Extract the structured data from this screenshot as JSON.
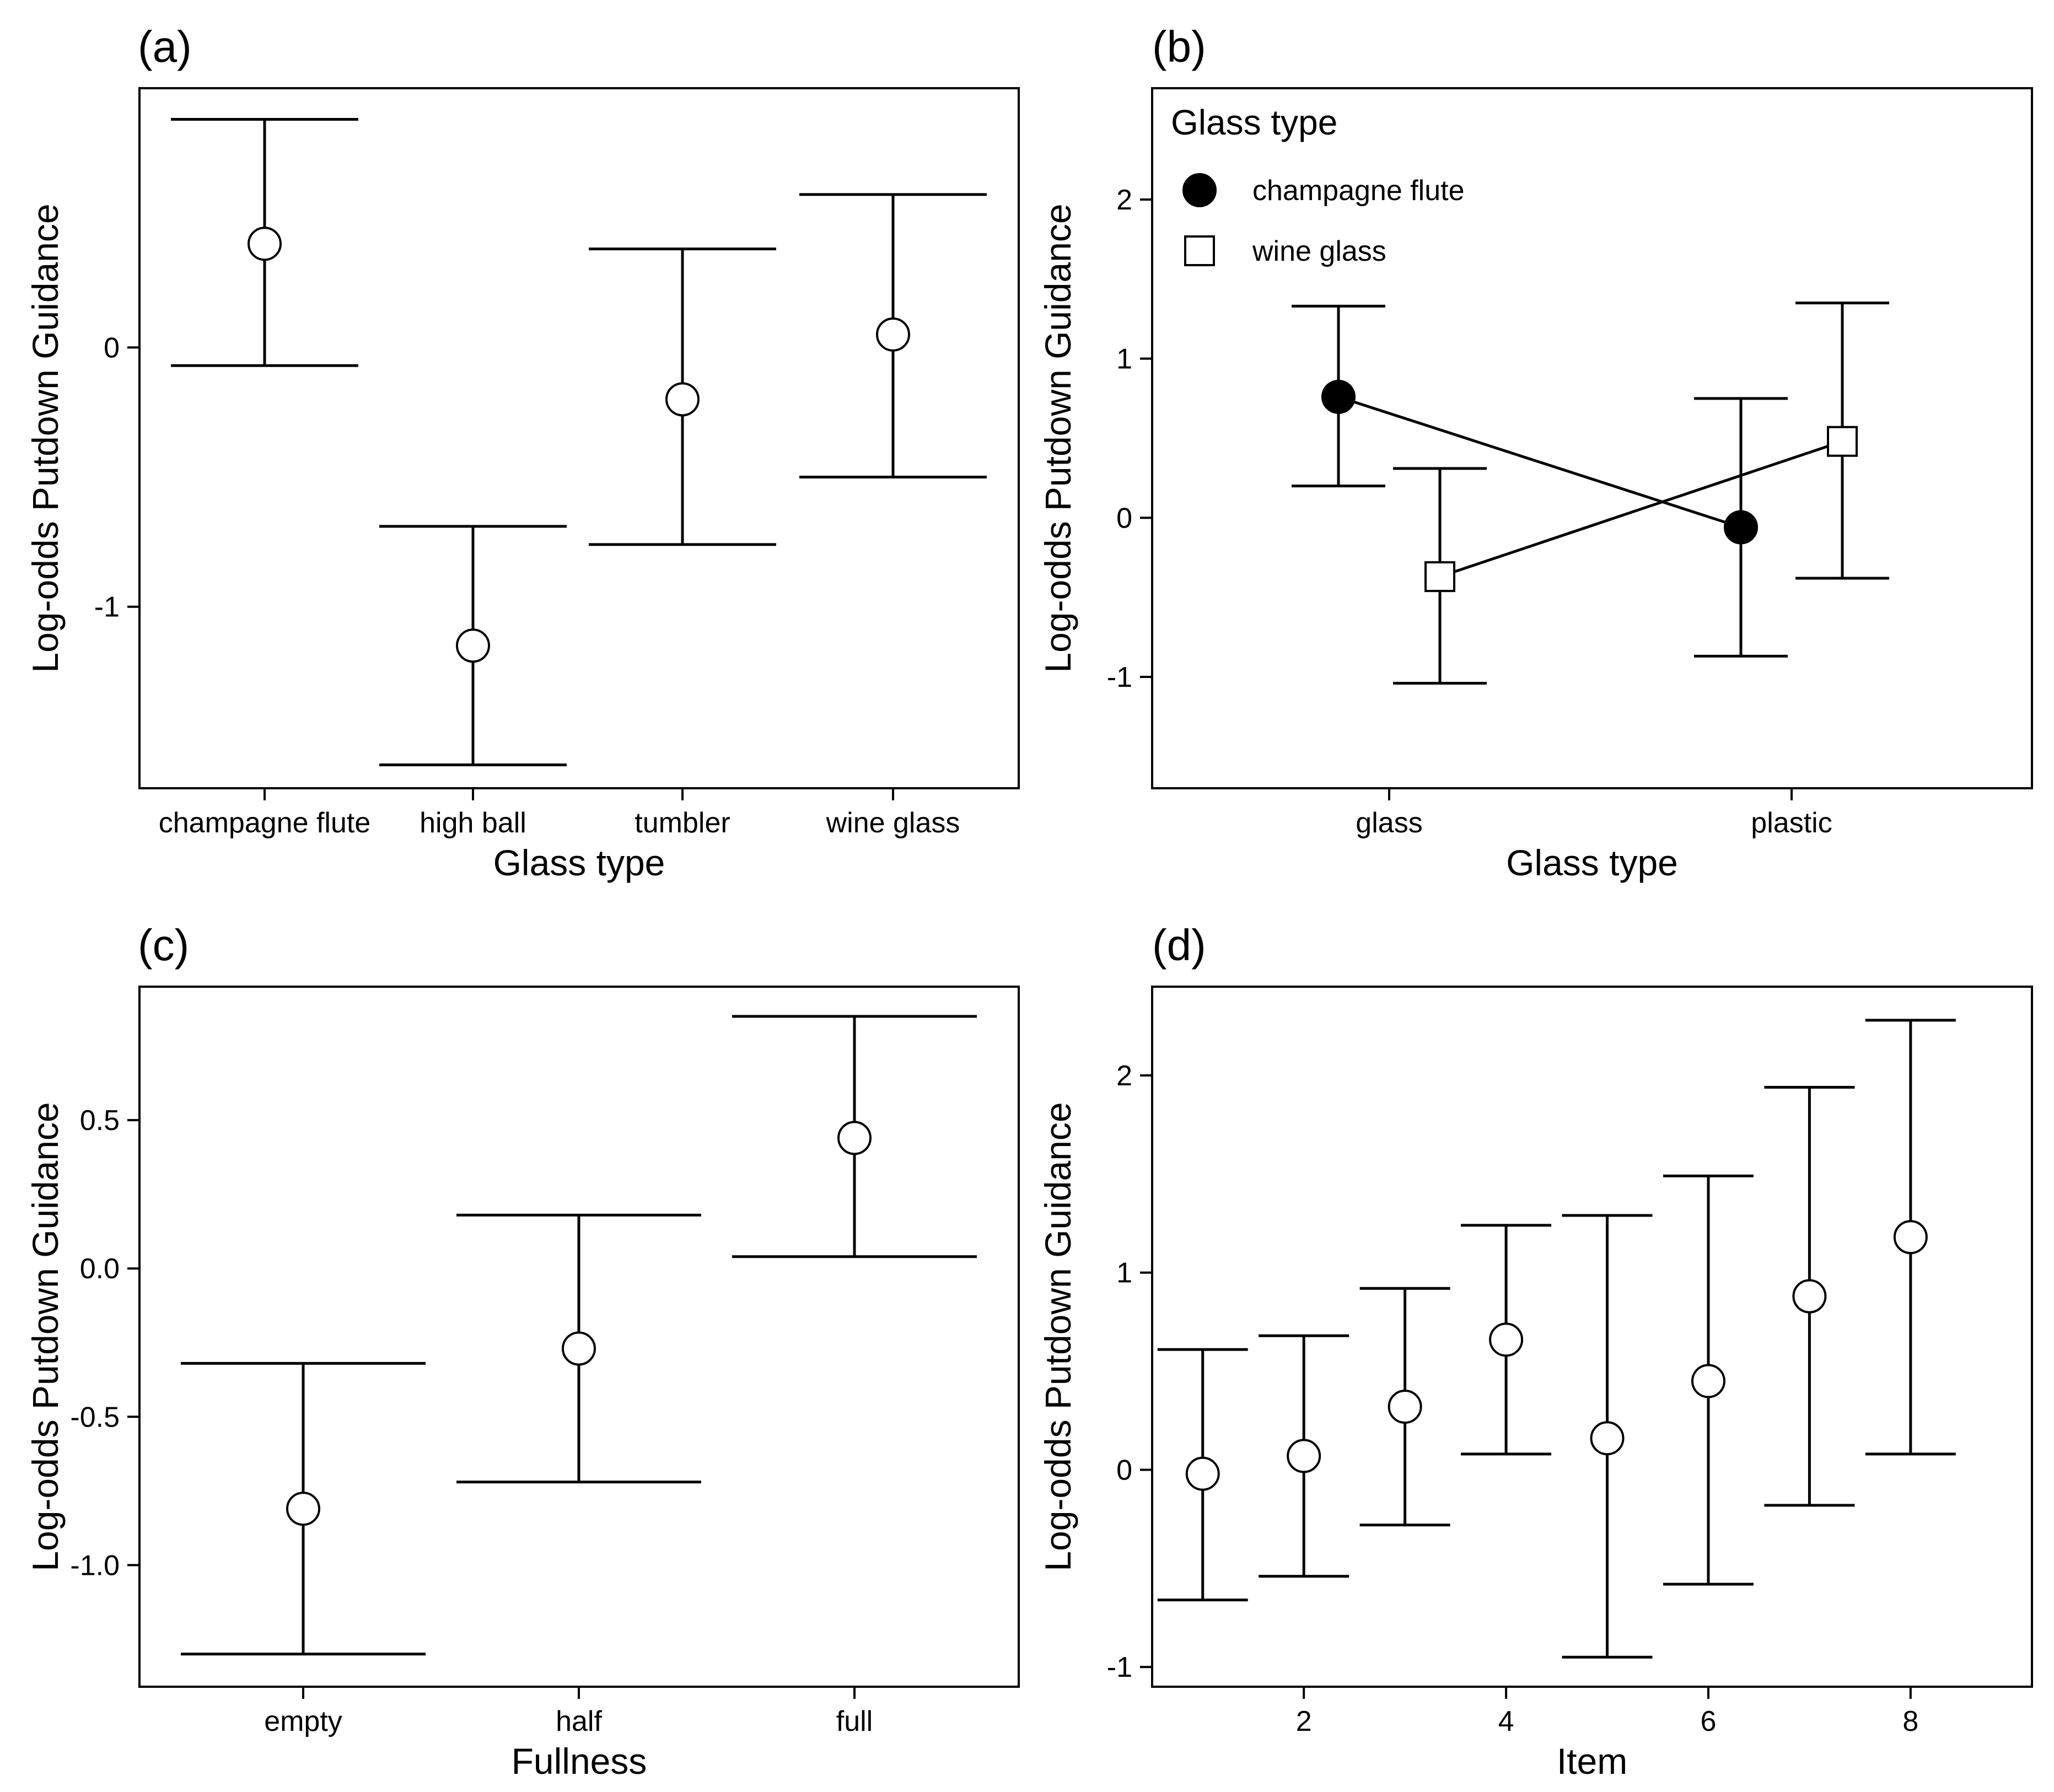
{
  "figure": {
    "colors": {
      "ink": "#000000",
      "open_marker_fill": "#ffffff",
      "filled_marker": "#000000",
      "background": "#ffffff"
    }
  },
  "chart_data": [
    {
      "id": "a",
      "panel_label": "(a)",
      "type": "scatter",
      "error_bars": true,
      "marker": "open-circle",
      "categories": [
        "champagne flute",
        "high ball",
        "tumbler",
        "wine glass"
      ],
      "values": [
        0.4,
        -1.15,
        -0.2,
        0.05
      ],
      "lower": [
        -0.07,
        -1.61,
        -0.76,
        -0.5
      ],
      "upper": [
        0.88,
        -0.69,
        0.38,
        0.59
      ],
      "xlabel": "Glass type",
      "ylabel": "Log-odds Putdown Guidance",
      "ylim": [
        -1.7,
        1.0
      ],
      "yticks": [
        -1,
        0
      ],
      "ytick_labels": [
        "-1",
        "0"
      ],
      "grid": false
    },
    {
      "id": "b",
      "panel_label": "(b)",
      "type": "line",
      "error_bars": true,
      "categories": [
        "glass",
        "plastic"
      ],
      "series": [
        {
          "name": "champagne flute",
          "marker": "filled-circle",
          "values": [
            0.76,
            -0.06
          ],
          "lower": [
            0.2,
            -0.87
          ],
          "upper": [
            1.33,
            0.75
          ]
        },
        {
          "name": "wine glass",
          "marker": "open-square",
          "values": [
            -0.37,
            0.48
          ],
          "lower": [
            -1.04,
            -0.38
          ],
          "upper": [
            0.31,
            1.35
          ]
        }
      ],
      "legend": {
        "title": "Glass type",
        "position": "top-left"
      },
      "xlabel": "Glass type",
      "ylabel": "Log-odds Putdown Guidance",
      "ylim": [
        -1.7,
        2.7
      ],
      "yticks": [
        -1,
        0,
        1,
        2
      ],
      "ytick_labels": [
        "-1",
        "0",
        "1",
        "2"
      ],
      "grid": false
    },
    {
      "id": "c",
      "panel_label": "(c)",
      "type": "scatter",
      "error_bars": true,
      "marker": "open-circle",
      "categories": [
        "empty",
        "half",
        "full"
      ],
      "values": [
        -0.81,
        -0.27,
        0.44
      ],
      "lower": [
        -1.3,
        -0.72,
        0.04
      ],
      "upper": [
        -0.32,
        0.18,
        0.85
      ],
      "xlabel": "Fullness",
      "ylabel": "Log-odds Putdown Guidance",
      "ylim": [
        -1.41,
        0.95
      ],
      "yticks": [
        -1.0,
        -0.5,
        0.0,
        0.5
      ],
      "ytick_labels": [
        "-1.0",
        "-0.5",
        "0.0",
        "0.5"
      ],
      "grid": false
    },
    {
      "id": "d",
      "panel_label": "(d)",
      "type": "scatter",
      "error_bars": true,
      "marker": "open-circle",
      "x": [
        1,
        2,
        3,
        4,
        5,
        6,
        7,
        8
      ],
      "values": [
        -0.02,
        0.07,
        0.32,
        0.66,
        0.16,
        0.45,
        0.88,
        1.18
      ],
      "lower": [
        -0.66,
        -0.54,
        -0.28,
        0.08,
        -0.95,
        -0.58,
        -0.18,
        0.08
      ],
      "upper": [
        0.61,
        0.68,
        0.92,
        1.24,
        1.29,
        1.49,
        1.94,
        2.28
      ],
      "xlabel": "Item",
      "ylabel": "Log-odds Putdown Guidance",
      "xlim": [
        0.5,
        9.2
      ],
      "xticks": [
        2,
        4,
        6,
        8
      ],
      "xtick_labels": [
        "2",
        "4",
        "6",
        "8"
      ],
      "ylim": [
        -1.1,
        2.45
      ],
      "yticks": [
        -1,
        0,
        1,
        2
      ],
      "ytick_labels": [
        "-1",
        "0",
        "1",
        "2"
      ],
      "grid": false
    }
  ]
}
